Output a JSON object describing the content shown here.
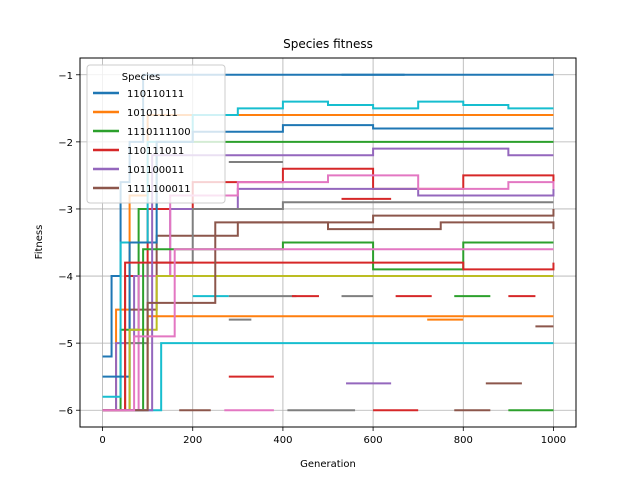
{
  "chart_data": {
    "type": "line",
    "title": "Species fitness",
    "xlabel": "Generation",
    "ylabel": "Fitness",
    "xlim": [
      -50,
      1050
    ],
    "ylim": [
      -6.25,
      -0.75
    ],
    "x_ticks": [
      0,
      200,
      400,
      600,
      800,
      1000
    ],
    "y_ticks": [
      -6,
      -5,
      -4,
      -3,
      -2,
      -1
    ],
    "grid": true,
    "legend": {
      "title": "Species",
      "position": "upper-left"
    },
    "series": [
      {
        "name": "110110111",
        "color": "#1f77b4",
        "points": [
          [
            0,
            -5.2
          ],
          [
            20,
            -4.0
          ],
          [
            40,
            -2.6
          ],
          [
            60,
            -2.0
          ],
          [
            90,
            -1.0
          ],
          [
            250,
            -1.0
          ],
          [
            1000,
            -1.0
          ]
        ]
      },
      {
        "name": "10101111",
        "color": "#ff7f0e",
        "points": [
          [
            0,
            -6.0
          ],
          [
            30,
            -4.5
          ],
          [
            60,
            -2.8
          ],
          [
            100,
            -1.6
          ],
          [
            350,
            -1.6
          ],
          [
            1000,
            -1.6
          ]
        ]
      },
      {
        "name": "1110111100",
        "color": "#2ca02c",
        "points": [
          [
            0,
            -6.0
          ],
          [
            40,
            -4.8
          ],
          [
            80,
            -3.0
          ],
          [
            120,
            -2.0
          ],
          [
            500,
            -2.0
          ],
          [
            1000,
            -2.0
          ]
        ]
      },
      {
        "name": "110111011",
        "color": "#d62728",
        "points": [
          [
            0,
            -6.0
          ],
          [
            50,
            -4.0
          ],
          [
            100,
            -3.0
          ],
          [
            200,
            -2.6
          ],
          [
            400,
            -2.4
          ],
          [
            600,
            -2.7
          ],
          [
            800,
            -2.5
          ],
          [
            1000,
            -2.6
          ]
        ]
      },
      {
        "name": "101100011",
        "color": "#9467bd",
        "points": [
          [
            0,
            -6.0
          ],
          [
            30,
            -5.0
          ],
          [
            70,
            -4.0
          ],
          [
            150,
            -3.0
          ],
          [
            300,
            -2.7
          ],
          [
            700,
            -2.8
          ],
          [
            1000,
            -2.7
          ]
        ]
      },
      {
        "name": "1111100011",
        "color": "#8c564b",
        "points": [
          [
            0,
            -6.0
          ],
          [
            60,
            -4.5
          ],
          [
            120,
            -3.4
          ],
          [
            300,
            -3.2
          ],
          [
            600,
            -3.1
          ],
          [
            1000,
            -3.0
          ]
        ]
      },
      {
        "color": "#17becf",
        "points": [
          [
            0,
            -5.8
          ],
          [
            40,
            -3.5
          ],
          [
            100,
            -2.0
          ],
          [
            200,
            -1.6
          ],
          [
            300,
            -1.5
          ],
          [
            400,
            -1.4
          ],
          [
            500,
            -1.45
          ],
          [
            600,
            -1.5
          ],
          [
            700,
            -1.4
          ],
          [
            800,
            -1.45
          ],
          [
            900,
            -1.5
          ],
          [
            1000,
            -1.5
          ]
        ]
      },
      {
        "color": "#1f77b4",
        "points": [
          [
            0,
            -5.5
          ],
          [
            60,
            -3.5
          ],
          [
            120,
            -2.0
          ],
          [
            200,
            -1.85
          ],
          [
            400,
            -1.75
          ],
          [
            600,
            -1.8
          ],
          [
            800,
            -1.8
          ],
          [
            1000,
            -1.8
          ]
        ]
      },
      {
        "color": "#e377c2",
        "points": [
          [
            0,
            -6.0
          ],
          [
            80,
            -4.0
          ],
          [
            150,
            -2.8
          ],
          [
            300,
            -2.6
          ],
          [
            500,
            -2.5
          ],
          [
            700,
            -2.7
          ],
          [
            900,
            -2.6
          ],
          [
            1000,
            -2.7
          ]
        ]
      },
      {
        "color": "#7f7f7f",
        "points": [
          [
            0,
            -6.0
          ],
          [
            50,
            -5.0
          ],
          [
            100,
            -3.8
          ],
          [
            200,
            -3.0
          ],
          [
            400,
            -2.9
          ],
          [
            700,
            -2.9
          ],
          [
            1000,
            -2.9
          ]
        ]
      },
      {
        "color": "#bcbd22",
        "points": [
          [
            0,
            -6.0
          ],
          [
            60,
            -4.8
          ],
          [
            120,
            -4.0
          ],
          [
            300,
            -4.0
          ],
          [
            600,
            -4.0
          ],
          [
            1000,
            -4.0
          ]
        ]
      },
      {
        "color": "#2ca02c",
        "points": [
          [
            0,
            -6.0
          ],
          [
            90,
            -3.6
          ],
          [
            200,
            -3.6
          ],
          [
            400,
            -3.5
          ],
          [
            600,
            -3.9
          ],
          [
            800,
            -3.5
          ],
          [
            1000,
            -3.5
          ]
        ]
      },
      {
        "color": "#ff7f0e",
        "points": [
          [
            0,
            -6.0
          ],
          [
            100,
            -4.6
          ],
          [
            300,
            -4.6
          ],
          [
            600,
            -4.6
          ],
          [
            1000,
            -4.6
          ]
        ]
      },
      {
        "color": "#17becf",
        "points": [
          [
            0,
            -6.0
          ],
          [
            130,
            -5.0
          ],
          [
            400,
            -5.0
          ],
          [
            700,
            -5.0
          ],
          [
            1000,
            -5.0
          ]
        ]
      },
      {
        "color": "#d62728",
        "points": [
          [
            0,
            -6.0
          ],
          [
            50,
            -3.8
          ],
          [
            200,
            -3.8
          ],
          [
            500,
            -3.8
          ],
          [
            800,
            -3.9
          ],
          [
            1000,
            -3.8
          ]
        ]
      },
      {
        "color": "#9467bd",
        "points": [
          [
            0,
            -6.0
          ],
          [
            110,
            -2.2
          ],
          [
            300,
            -2.2
          ],
          [
            600,
            -2.1
          ],
          [
            900,
            -2.2
          ],
          [
            1000,
            -2.2
          ]
        ]
      },
      {
        "color": "#8c564b",
        "points": [
          [
            0,
            -6.0
          ],
          [
            100,
            -4.4
          ],
          [
            250,
            -3.2
          ],
          [
            500,
            -3.3
          ],
          [
            750,
            -3.2
          ],
          [
            1000,
            -3.3
          ]
        ]
      },
      {
        "color": "#e377c2",
        "points": [
          [
            0,
            -6.0
          ],
          [
            70,
            -4.9
          ],
          [
            160,
            -3.6
          ],
          [
            350,
            -3.6
          ],
          [
            650,
            -3.6
          ],
          [
            1000,
            -3.6
          ]
        ]
      }
    ],
    "segments": [
      {
        "color": "#1f77b4",
        "x": [
          530,
          670
        ],
        "y": -1.0
      },
      {
        "color": "#7f7f7f",
        "x": [
          280,
          400
        ],
        "y": -2.3
      },
      {
        "color": "#d62728",
        "x": [
          530,
          640
        ],
        "y": -2.85
      },
      {
        "color": "#17becf",
        "x": [
          200,
          280
        ],
        "y": -4.3
      },
      {
        "color": "#7f7f7f",
        "x": [
          280,
          430
        ],
        "y": -4.3
      },
      {
        "color": "#d62728",
        "x": [
          420,
          480
        ],
        "y": -4.3
      },
      {
        "color": "#7f7f7f",
        "x": [
          530,
          600
        ],
        "y": -4.3
      },
      {
        "color": "#d62728",
        "x": [
          650,
          730
        ],
        "y": -4.3
      },
      {
        "color": "#2ca02c",
        "x": [
          780,
          860
        ],
        "y": -4.3
      },
      {
        "color": "#d62728",
        "x": [
          900,
          960
        ],
        "y": -4.3
      },
      {
        "color": "#7f7f7f",
        "x": [
          280,
          330
        ],
        "y": -4.65
      },
      {
        "color": "#ff7f0e",
        "x": [
          720,
          800
        ],
        "y": -4.65
      },
      {
        "color": "#8c564b",
        "x": [
          960,
          1000
        ],
        "y": -4.75
      },
      {
        "color": "#d62728",
        "x": [
          280,
          380
        ],
        "y": -5.5
      },
      {
        "color": "#9467bd",
        "x": [
          540,
          640
        ],
        "y": -5.6
      },
      {
        "color": "#8c564b",
        "x": [
          850,
          930
        ],
        "y": -5.6
      },
      {
        "color": "#9467bd",
        "x": [
          0,
          80
        ],
        "y": -6.0
      },
      {
        "color": "#8c564b",
        "x": [
          170,
          240
        ],
        "y": -6.0
      },
      {
        "color": "#e377c2",
        "x": [
          270,
          380
        ],
        "y": -6.0
      },
      {
        "color": "#7f7f7f",
        "x": [
          410,
          560
        ],
        "y": -6.0
      },
      {
        "color": "#d62728",
        "x": [
          600,
          700
        ],
        "y": -6.0
      },
      {
        "color": "#8c564b",
        "x": [
          780,
          860
        ],
        "y": -6.0
      },
      {
        "color": "#2ca02c",
        "x": [
          900,
          1000
        ],
        "y": -6.0
      }
    ]
  }
}
